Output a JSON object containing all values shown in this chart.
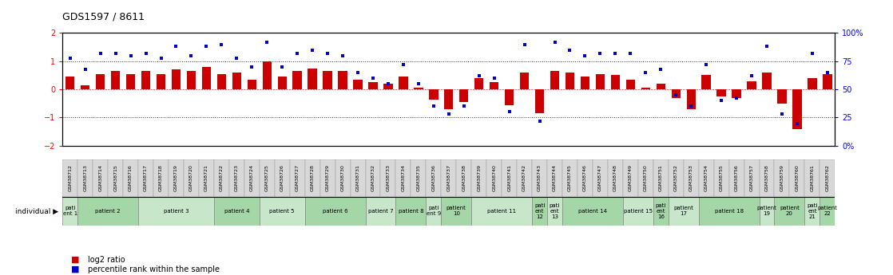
{
  "title": "GDS1597 / 8611",
  "gsm_labels": [
    "GSM38712",
    "GSM38713",
    "GSM38714",
    "GSM38715",
    "GSM38716",
    "GSM38717",
    "GSM38718",
    "GSM38719",
    "GSM38720",
    "GSM38721",
    "GSM38722",
    "GSM38723",
    "GSM38724",
    "GSM38725",
    "GSM38726",
    "GSM38727",
    "GSM38728",
    "GSM38729",
    "GSM38730",
    "GSM38731",
    "GSM38732",
    "GSM38733",
    "GSM38734",
    "GSM38735",
    "GSM38736",
    "GSM38737",
    "GSM38738",
    "GSM38739",
    "GSM38740",
    "GSM38741",
    "GSM38742",
    "GSM38743",
    "GSM38744",
    "GSM38745",
    "GSM38746",
    "GSM38747",
    "GSM38748",
    "GSM38749",
    "GSM38750",
    "GSM38751",
    "GSM38752",
    "GSM38753",
    "GSM38754",
    "GSM38755",
    "GSM38756",
    "GSM38757",
    "GSM38758",
    "GSM38759",
    "GSM38760",
    "GSM38761",
    "GSM38762"
  ],
  "log2_ratio": [
    0.45,
    0.15,
    0.55,
    0.65,
    0.55,
    0.65,
    0.55,
    0.7,
    0.65,
    0.8,
    0.55,
    0.6,
    0.35,
    1.0,
    0.45,
    0.65,
    0.75,
    0.65,
    0.65,
    0.35,
    0.25,
    0.2,
    0.45,
    0.05,
    -0.35,
    -0.7,
    -0.45,
    0.4,
    0.25,
    -0.55,
    0.6,
    -0.85,
    0.65,
    0.6,
    0.45,
    0.55,
    0.5,
    0.35,
    0.05,
    0.2,
    -0.3,
    -0.7,
    0.5,
    -0.25,
    -0.3,
    0.3,
    0.6,
    -0.5,
    -1.4,
    0.4,
    0.55
  ],
  "percentile_rank": [
    0.78,
    0.68,
    0.82,
    0.82,
    0.8,
    0.82,
    0.78,
    0.88,
    0.8,
    0.88,
    0.9,
    0.78,
    0.7,
    0.92,
    0.7,
    0.82,
    0.85,
    0.82,
    0.8,
    0.65,
    0.6,
    0.55,
    0.72,
    0.55,
    0.35,
    0.28,
    0.35,
    0.62,
    0.6,
    0.3,
    0.9,
    0.22,
    0.92,
    0.85,
    0.8,
    0.82,
    0.82,
    0.82,
    0.65,
    0.68,
    0.45,
    0.35,
    0.72,
    0.4,
    0.42,
    0.62,
    0.88,
    0.28,
    0.2,
    0.82,
    0.65
  ],
  "patient_groups": [
    {
      "label": "pati\nent 1",
      "start": 0,
      "end": 1,
      "color": "#c8e6c9"
    },
    {
      "label": "patient 2",
      "start": 1,
      "end": 5,
      "color": "#a5d6a7"
    },
    {
      "label": "patient 3",
      "start": 5,
      "end": 10,
      "color": "#c8e6c9"
    },
    {
      "label": "patient 4",
      "start": 10,
      "end": 13,
      "color": "#a5d6a7"
    },
    {
      "label": "patient 5",
      "start": 13,
      "end": 16,
      "color": "#c8e6c9"
    },
    {
      "label": "patient 6",
      "start": 16,
      "end": 20,
      "color": "#a5d6a7"
    },
    {
      "label": "patient 7",
      "start": 20,
      "end": 22,
      "color": "#c8e6c9"
    },
    {
      "label": "patient 8",
      "start": 22,
      "end": 24,
      "color": "#a5d6a7"
    },
    {
      "label": "pati\nent 9",
      "start": 24,
      "end": 25,
      "color": "#c8e6c9"
    },
    {
      "label": "patient\n10",
      "start": 25,
      "end": 27,
      "color": "#a5d6a7"
    },
    {
      "label": "patient 11",
      "start": 27,
      "end": 31,
      "color": "#c8e6c9"
    },
    {
      "label": "pati\nent\n12",
      "start": 31,
      "end": 32,
      "color": "#a5d6a7"
    },
    {
      "label": "pati\nent\n13",
      "start": 32,
      "end": 33,
      "color": "#c8e6c9"
    },
    {
      "label": "patient 14",
      "start": 33,
      "end": 37,
      "color": "#a5d6a7"
    },
    {
      "label": "patient 15",
      "start": 37,
      "end": 39,
      "color": "#c8e6c9"
    },
    {
      "label": "pati\nent\n16",
      "start": 39,
      "end": 40,
      "color": "#a5d6a7"
    },
    {
      "label": "patient\n17",
      "start": 40,
      "end": 42,
      "color": "#c8e6c9"
    },
    {
      "label": "patient 18",
      "start": 42,
      "end": 46,
      "color": "#a5d6a7"
    },
    {
      "label": "patient\n19",
      "start": 46,
      "end": 47,
      "color": "#c8e6c9"
    },
    {
      "label": "patient\n20",
      "start": 47,
      "end": 49,
      "color": "#a5d6a7"
    },
    {
      "label": "pati\nent\n21",
      "start": 49,
      "end": 50,
      "color": "#c8e6c9"
    },
    {
      "label": "patient\n22",
      "start": 50,
      "end": 51,
      "color": "#a5d6a7"
    }
  ],
  "ylim": [
    -2,
    2
  ],
  "yticks_left": [
    -2,
    -1,
    0,
    1,
    2
  ],
  "yticks_right": [
    0,
    25,
    50,
    75,
    100
  ],
  "bar_color": "#cc0000",
  "dot_color": "#0000cc",
  "hline_color": "#333333",
  "hline_lw": 0.7,
  "bg_color": "#ffffff",
  "gsm_cell_color": "#d8d8d8",
  "gsm_cell_border": "#999999"
}
